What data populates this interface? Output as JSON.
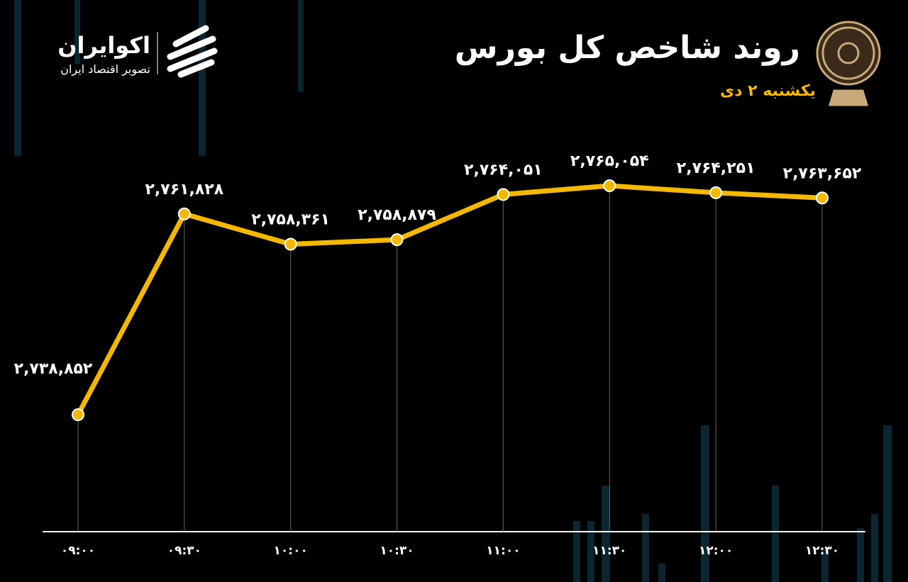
{
  "brand": {
    "name": "اکوایران",
    "tagline": "تصویر اقتصاد ایران"
  },
  "chart_data": {
    "type": "line",
    "title": "روند شاخص کل بورس",
    "subtitle": "یکشنبه ۲ دی",
    "categories": [
      "۰۹:۰۰",
      "۰۹:۳۰",
      "۱۰:۰۰",
      "۱۰:۳۰",
      "۱۱:۰۰",
      "۱۱:۳۰",
      "۱۲:۰۰",
      "۱۲:۳۰"
    ],
    "values": [
      2738852,
      2761828,
      2758361,
      2758879,
      2764051,
      2765054,
      2764251,
      2763652
    ],
    "value_labels": [
      "۲,۷۳۸,۸۵۲",
      "۲,۷۶۱,۸۲۸",
      "۲,۷۵۸,۳۶۱",
      "۲,۷۵۸,۸۷۹",
      "۲,۷۶۴,۰۵۱",
      "۲,۷۶۵,۰۵۴",
      "۲,۷۶۴,۲۵۱",
      "۲,۷۶۳,۶۵۲"
    ],
    "color": "#f5b800"
  }
}
